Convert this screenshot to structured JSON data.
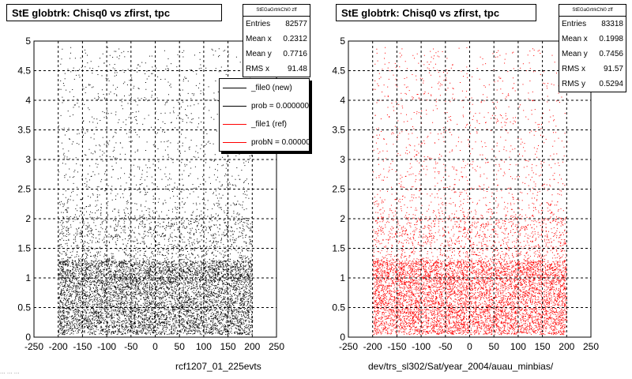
{
  "colors": {
    "new": "#000000",
    "ref": "#ff0000",
    "grid": "#000000"
  },
  "left_panel": {
    "title": "StE globtrk: Chisq0 vs zfirst, tpc",
    "stats_header": "StEGaGrtrkChi0 zff",
    "stats": [
      {
        "label": "Entries",
        "value": "82577"
      },
      {
        "label": "Mean x",
        "value": "0.2312"
      },
      {
        "label": "Mean y",
        "value": "0.7716"
      },
      {
        "label": "RMS x",
        "value": "91.48"
      }
    ],
    "legend": [
      {
        "label": "_file0 (new)",
        "color": "#000000"
      },
      {
        "label": "prob = 0.000000",
        "color": "#000000"
      },
      {
        "label": "_file1 (ref)",
        "color": "#ff0000"
      },
      {
        "label": "probN = 0.000000",
        "color": "#ff0000"
      }
    ],
    "xtitle": "rcf1207_01_225evts"
  },
  "right_panel": {
    "title": "StE globtrk: Chisq0 vs zfirst, tpc",
    "stats_header": "StEGaGrtrkChi0 zff",
    "stats": [
      {
        "label": "Entries",
        "value": "83318"
      },
      {
        "label": "Mean x",
        "value": "0.1998"
      },
      {
        "label": "Mean y",
        "value": "0.7456"
      },
      {
        "label": "RMS x",
        "value": "91.57"
      },
      {
        "label": "RMS y",
        "value": "0.5294"
      }
    ],
    "xtitle": "dev/trs_sl302/Sat/year_2004/auau_minbias/"
  },
  "footer": "... ... ...",
  "chart_data": [
    {
      "type": "scatter",
      "title": "StE globtrk: Chisq0 vs zfirst, tpc",
      "xlabel": "rcf1207_01_225evts",
      "ylabel": "",
      "xlim": [
        -250,
        250
      ],
      "ylim": [
        0,
        5
      ],
      "x_ticks": [
        -250,
        -200,
        -150,
        -100,
        -50,
        0,
        50,
        100,
        150,
        200,
        250
      ],
      "y_ticks": [
        0,
        0.5,
        1,
        1.5,
        2,
        2.5,
        3,
        3.5,
        4,
        4.5,
        5
      ],
      "grid": true,
      "legend_position": "top-right",
      "series": [
        {
          "name": "_file0 (new)",
          "color": "#000000",
          "entries": 82577,
          "mean_x": 0.2312,
          "mean_y": 0.7716,
          "rms_x": 91.48
        }
      ]
    },
    {
      "type": "scatter",
      "title": "StE globtrk: Chisq0 vs zfirst, tpc",
      "xlabel": "dev/trs_sl302/Sat/year_2004/auau_minbias/",
      "ylabel": "",
      "xlim": [
        -250,
        250
      ],
      "ylim": [
        0,
        5
      ],
      "x_ticks": [
        -250,
        -200,
        -150,
        -100,
        -50,
        0,
        50,
        100,
        150,
        200,
        250
      ],
      "y_ticks": [
        0,
        0.5,
        1,
        1.5,
        2,
        2.5,
        3,
        3.5,
        4,
        4.5,
        5
      ],
      "grid": true,
      "series": [
        {
          "name": "_file1 (ref)",
          "color": "#ff0000",
          "entries": 83318,
          "mean_x": 0.1998,
          "mean_y": 0.7456,
          "rms_x": 91.57,
          "rms_y": 0.5294
        }
      ]
    }
  ]
}
